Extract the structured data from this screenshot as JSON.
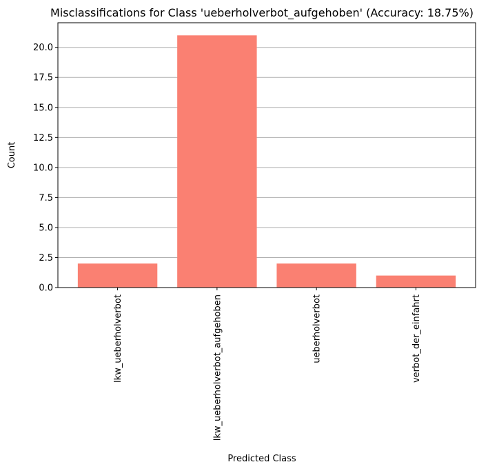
{
  "chart_data": {
    "type": "bar",
    "title": "Misclassifications for Class 'ueberholverbot_aufgehoben' (Accuracy: 18.75%)",
    "xlabel": "Predicted Class",
    "ylabel": "Count",
    "categories": [
      "lkw_ueberholverbot",
      "lkw_ueberholverbot_aufgehoben",
      "ueberholverbot",
      "verbot_der_einfahrt"
    ],
    "values": [
      2,
      21,
      2,
      1
    ],
    "ylim": [
      0,
      22.05
    ],
    "yticks": [
      "0.0",
      "2.5",
      "5.0",
      "7.5",
      "10.0",
      "12.5",
      "15.0",
      "17.5",
      "20.0"
    ],
    "grid": "y-axis",
    "bar_color": "#fa8072"
  }
}
